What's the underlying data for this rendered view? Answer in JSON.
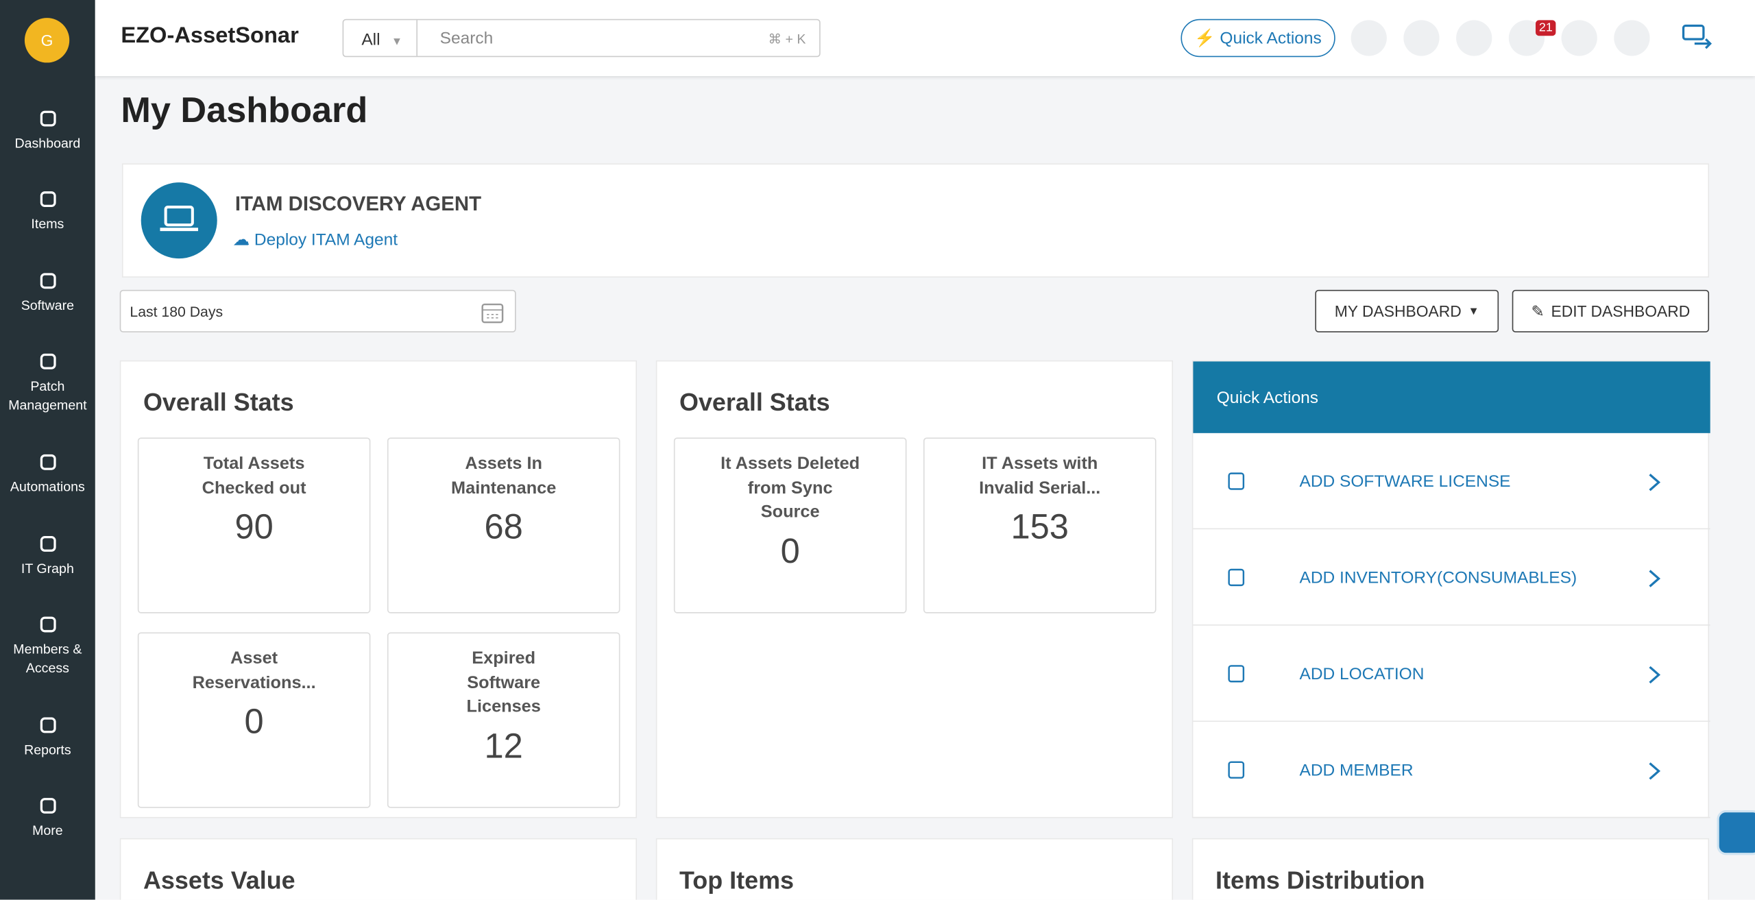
{
  "user_initial": "G",
  "sidebar": [
    "Dashboard",
    "Items",
    "Software",
    "Patch Management",
    "Automations",
    "IT Graph",
    "Members & Access",
    "Reports",
    "More"
  ],
  "header": {
    "brand": "EZO-AssetSonar",
    "search_scope": "All",
    "search_placeholder": "Search",
    "shortcut": "⌘ + K",
    "quick_actions": "Quick Actions",
    "notifications": "21"
  },
  "page_title": "My Dashboard",
  "agent": {
    "title": "ITAM DISCOVERY AGENT",
    "link": "Deploy ITAM Agent"
  },
  "date_range": "Last 180 Days",
  "buttons": [
    "MY DASHBOARD",
    "EDIT DASHBOARD"
  ],
  "stats_panels": [
    {
      "title": "Overall Stats",
      "cards": [
        {
          "label": "Total Assets Checked out",
          "value": "90"
        },
        {
          "label": "Assets In Maintenance",
          "value": "68"
        },
        {
          "label": "Asset Reservations...",
          "value": "0"
        },
        {
          "label": "Expired Software Licenses",
          "value": "12"
        }
      ]
    },
    {
      "title": "Overall Stats",
      "cards": [
        {
          "label": "It Assets Deleted from Sync Source",
          "value": "0"
        },
        {
          "label": "IT Assets with Invalid Serial...",
          "value": "153"
        }
      ]
    }
  ],
  "quick_actions_panel": {
    "title": "Quick Actions",
    "items": [
      "ADD SOFTWARE LICENSE",
      "ADD INVENTORY(CONSUMABLES)",
      "ADD LOCATION",
      "ADD MEMBER"
    ]
  },
  "bottom_panels": [
    "Assets Value",
    "Top Items",
    "Items Distribution"
  ]
}
